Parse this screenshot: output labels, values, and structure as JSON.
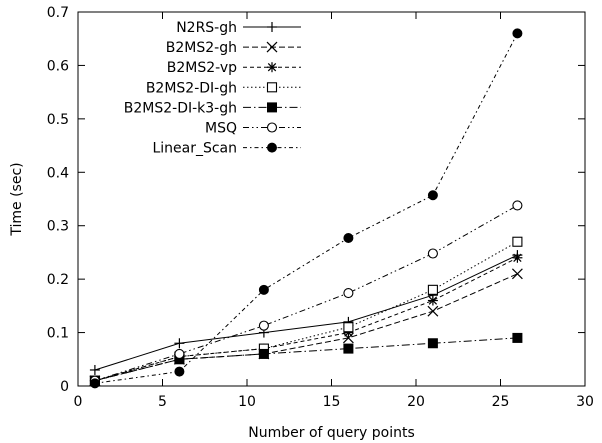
{
  "chart_data": {
    "type": "line",
    "title": "",
    "xlabel": "Number of query points",
    "ylabel": "Time (sec)",
    "xlim": [
      0,
      30
    ],
    "ylim": [
      0,
      0.7
    ],
    "xticks": [
      0,
      5,
      10,
      15,
      20,
      25,
      30
    ],
    "yticks": [
      0,
      0.1,
      0.2,
      0.3,
      0.4,
      0.5,
      0.6,
      0.7
    ],
    "grid": false,
    "legend_position": "top-left",
    "series": [
      {
        "name": "N2RS-gh",
        "marker": "plus",
        "dash": "solid",
        "x": [
          1,
          6,
          11,
          16,
          21,
          26
        ],
        "y": [
          0.03,
          0.08,
          0.1,
          0.12,
          0.17,
          0.245
        ]
      },
      {
        "name": "B2MS2-gh",
        "marker": "cross",
        "dash": "dashed",
        "x": [
          1,
          6,
          11,
          16,
          21,
          26
        ],
        "y": [
          0.01,
          0.05,
          0.06,
          0.09,
          0.14,
          0.21
        ]
      },
      {
        "name": "B2MS2-vp",
        "marker": "star",
        "dash": "dashed-fine",
        "x": [
          1,
          6,
          11,
          16,
          21,
          26
        ],
        "y": [
          0.01,
          0.055,
          0.07,
          0.1,
          0.16,
          0.24
        ]
      },
      {
        "name": "B2MS2-DI-gh",
        "marker": "square-open",
        "dash": "dotted",
        "x": [
          1,
          6,
          11,
          16,
          21,
          26
        ],
        "y": [
          0.01,
          0.055,
          0.07,
          0.11,
          0.18,
          0.27
        ]
      },
      {
        "name": "B2MS2-DI-k3-gh",
        "marker": "square-filled",
        "dash": "dash-dot",
        "x": [
          1,
          6,
          11,
          16,
          21,
          26
        ],
        "y": [
          0.01,
          0.05,
          0.06,
          0.07,
          0.08,
          0.09
        ]
      },
      {
        "name": "MSQ",
        "marker": "circle-open",
        "dash": "dash-dot-dot",
        "x": [
          1,
          6,
          11,
          16,
          21,
          26
        ],
        "y": [
          0.01,
          0.06,
          0.113,
          0.174,
          0.248,
          0.338
        ]
      },
      {
        "name": "Linear_Scan",
        "marker": "circle-filled",
        "dash": "dash-dot-fine",
        "x": [
          1,
          6,
          11,
          16,
          21,
          26
        ],
        "y": [
          0.005,
          0.027,
          0.18,
          0.277,
          0.357,
          0.66
        ]
      }
    ]
  }
}
